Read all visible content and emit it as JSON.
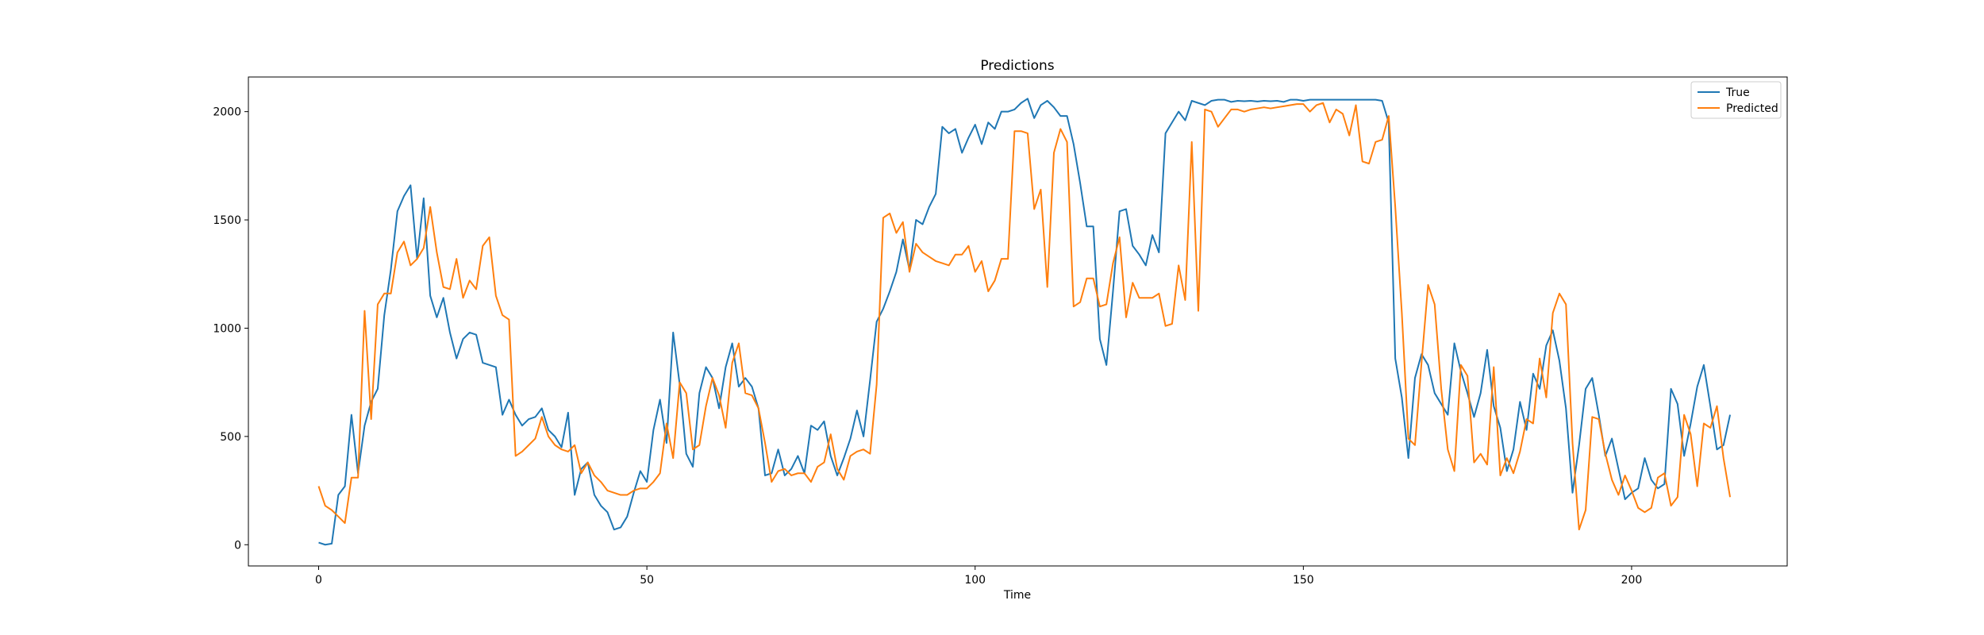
{
  "chart_data": {
    "type": "line",
    "title": "Predictions",
    "xlabel": "Time",
    "ylabel": "",
    "xlim": [
      -10.7,
      223.7
    ],
    "ylim": [
      -98,
      2160
    ],
    "xticks": [
      0,
      50,
      100,
      150,
      200
    ],
    "yticks": [
      0,
      500,
      1000,
      1500,
      2000
    ],
    "grid": false,
    "legend_position": "top-right",
    "series": [
      {
        "name": "True",
        "color": "#1f77b4",
        "values": [
          10,
          0,
          5,
          230,
          270,
          600,
          330,
          550,
          660,
          720,
          1060,
          1270,
          1540,
          1610,
          1660,
          1320,
          1600,
          1150,
          1050,
          1140,
          980,
          860,
          950,
          980,
          970,
          840,
          830,
          820,
          600,
          670,
          600,
          550,
          580,
          590,
          630,
          530,
          500,
          450,
          610,
          230,
          350,
          380,
          230,
          180,
          150,
          70,
          80,
          130,
          240,
          340,
          290,
          530,
          670,
          470,
          980,
          740,
          420,
          360,
          700,
          820,
          770,
          630,
          820,
          930,
          730,
          770,
          730,
          630,
          320,
          330,
          440,
          320,
          350,
          410,
          330,
          550,
          530,
          570,
          410,
          320,
          400,
          490,
          620,
          500,
          760,
          1030,
          1090,
          1170,
          1260,
          1410,
          1270,
          1500,
          1480,
          1560,
          1620,
          1930,
          1900,
          1920,
          1810,
          1880,
          1940,
          1850,
          1950,
          1920,
          2000,
          2000,
          2010,
          2040,
          2060,
          1970,
          2030,
          2050,
          2020,
          1980,
          1980,
          1850,
          1670,
          1470,
          1470,
          950,
          830,
          1170,
          1540,
          1550,
          1380,
          1340,
          1290,
          1430,
          1350,
          1900,
          1950,
          2000,
          1960,
          2050,
          2040,
          2030,
          2050,
          2055,
          2055,
          2045,
          2050,
          2048,
          2050,
          2047,
          2050,
          2048,
          2050,
          2045,
          2055,
          2055,
          2050,
          2055,
          2055,
          2055,
          2055,
          2055,
          2055,
          2055,
          2055,
          2055,
          2055,
          2055,
          2050,
          1950,
          860,
          680,
          400,
          770,
          880,
          830,
          700,
          650,
          600,
          930,
          800,
          700,
          590,
          700,
          900,
          640,
          540,
          340,
          440,
          660,
          530,
          790,
          720,
          920,
          990,
          850,
          630,
          240,
          460,
          720,
          770,
          600,
          410,
          490,
          350,
          210,
          240,
          260,
          400,
          300,
          260,
          280,
          720,
          650,
          410,
          560,
          730,
          830,
          640,
          440,
          460,
          600
        ]
      },
      {
        "name": "Predicted",
        "color": "#ff7f0e",
        "values": [
          270,
          180,
          160,
          130,
          100,
          310,
          310,
          1080,
          580,
          1110,
          1160,
          1160,
          1350,
          1400,
          1290,
          1320,
          1370,
          1560,
          1350,
          1190,
          1180,
          1320,
          1140,
          1220,
          1180,
          1380,
          1420,
          1150,
          1060,
          1040,
          410,
          430,
          460,
          490,
          590,
          500,
          460,
          440,
          430,
          460,
          330,
          380,
          320,
          290,
          250,
          240,
          230,
          230,
          250,
          260,
          260,
          290,
          330,
          560,
          400,
          750,
          700,
          440,
          460,
          640,
          770,
          690,
          540,
          840,
          930,
          700,
          690,
          630,
          470,
          290,
          340,
          350,
          320,
          330,
          330,
          290,
          360,
          380,
          510,
          350,
          300,
          410,
          430,
          440,
          420,
          740,
          1510,
          1530,
          1440,
          1490,
          1260,
          1390,
          1350,
          1330,
          1310,
          1300,
          1290,
          1340,
          1340,
          1380,
          1260,
          1310,
          1170,
          1220,
          1320,
          1320,
          1910,
          1910,
          1900,
          1550,
          1640,
          1190,
          1810,
          1920,
          1860,
          1100,
          1120,
          1230,
          1230,
          1100,
          1110,
          1300,
          1420,
          1050,
          1210,
          1140,
          1140,
          1140,
          1160,
          1010,
          1020,
          1290,
          1130,
          1860,
          1080,
          2010,
          2000,
          1930,
          1970,
          2010,
          2010,
          2000,
          2010,
          2015,
          2020,
          2015,
          2020,
          2025,
          2030,
          2035,
          2035,
          2000,
          2030,
          2040,
          1950,
          2010,
          1990,
          1890,
          2030,
          1770,
          1760,
          1860,
          1870,
          1980,
          1560,
          1070,
          490,
          460,
          840,
          1200,
          1110,
          720,
          440,
          340,
          830,
          780,
          380,
          420,
          370,
          820,
          320,
          400,
          330,
          430,
          580,
          560,
          860,
          680,
          1070,
          1160,
          1110,
          470,
          70,
          160,
          590,
          580,
          420,
          300,
          230,
          320,
          250,
          170,
          150,
          170,
          310,
          330,
          180,
          220,
          600,
          510,
          270,
          560,
          540,
          640,
          400,
          220
        ]
      }
    ]
  }
}
